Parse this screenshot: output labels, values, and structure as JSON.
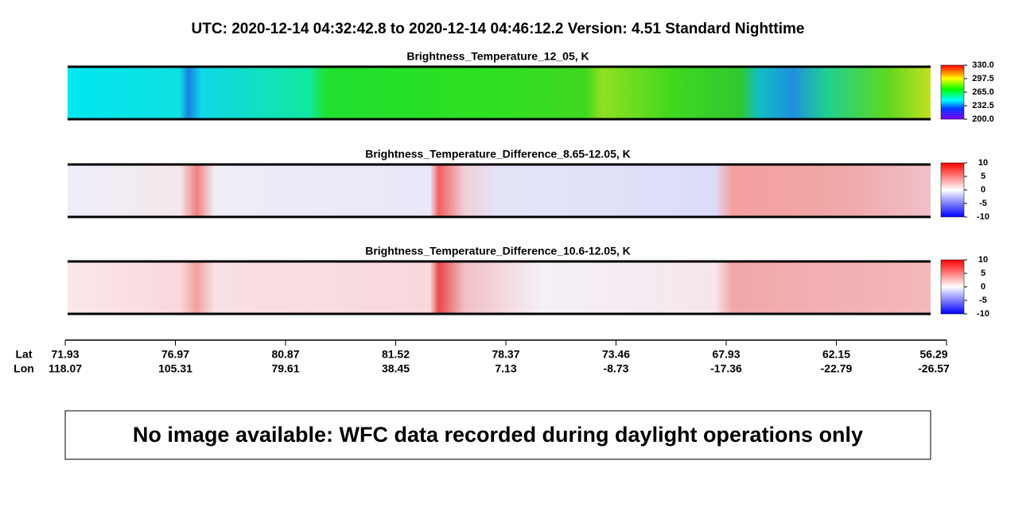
{
  "header": {
    "title": "UTC:  2020-12-14   04:32:42.8  to  2020-12-14   04:46:12.2    Version: 4.51  Standard Nighttime"
  },
  "panels": [
    {
      "title": "Brightness_Temperature_12_05, K",
      "colorbar_labels": [
        "330.0",
        "297.5",
        "265.0",
        "232.5",
        "200.0"
      ]
    },
    {
      "title": "Brightness_Temperature_Difference_8.65-12.05, K",
      "colorbar_labels": [
        "10",
        "5",
        "0",
        "-5",
        "-10"
      ]
    },
    {
      "title": "Brightness_Temperature_Difference_10.6-12.05, K",
      "colorbar_labels": [
        "10",
        "5",
        "0",
        "-5",
        "-10"
      ]
    }
  ],
  "axis": {
    "lat_label": "Lat",
    "lon_label": "Lon",
    "lat": [
      "71.93",
      "76.97",
      "80.87",
      "81.52",
      "78.37",
      "73.46",
      "67.93",
      "62.15",
      "56.29"
    ],
    "lon": [
      "118.07",
      "105.31",
      "79.61",
      "38.45",
      "7.13",
      "-8.73",
      "-17.36",
      "-22.79",
      "-26.57"
    ]
  },
  "message": "No image available: WFC data recorded during daylight operations only"
}
